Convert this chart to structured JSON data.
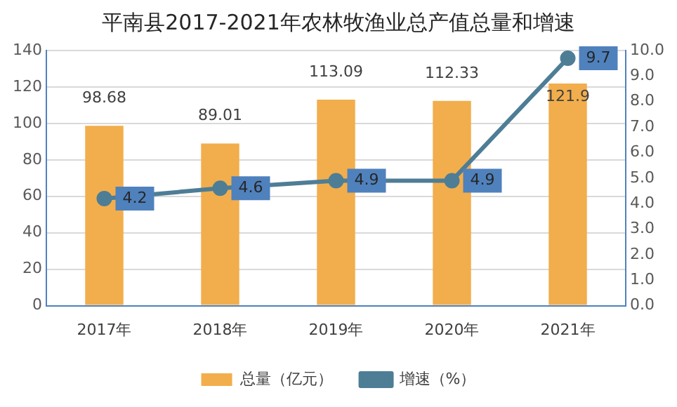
{
  "chart_data": {
    "type": "bar",
    "title": "平南县2017-2021年农林牧渔业总产值总量和增速",
    "categories": [
      "2017年",
      "2018年",
      "2019年",
      "2020年",
      "2021年"
    ],
    "series": [
      {
        "name": "总量（亿元）",
        "color": "#f2ae4c",
        "values": [
          98.68,
          89.01,
          113.09,
          112.33,
          121.9
        ]
      },
      {
        "name": "增速（%）",
        "type": "line",
        "axis": "y2",
        "color": "#4e7d96",
        "values": [
          4.2,
          4.6,
          4.9,
          4.9,
          9.7
        ]
      }
    ],
    "ylim": [
      0,
      140
    ],
    "yticks": [
      0,
      20,
      40,
      60,
      80,
      100,
      120,
      140
    ],
    "y2lim": [
      0,
      10
    ],
    "y2ticks": [
      {
        "value": 0,
        "label": "0.0"
      },
      {
        "value": 1,
        "label": "1.0"
      },
      {
        "value": 2,
        "label": "2.0"
      },
      {
        "value": 3,
        "label": "3.0"
      },
      {
        "value": 4,
        "label": "4.0"
      },
      {
        "value": 5,
        "label": "5.0"
      },
      {
        "value": 6,
        "label": "6.0"
      },
      {
        "value": 7,
        "label": "7.0"
      },
      {
        "value": 8,
        "label": "8.0"
      },
      {
        "value": 9,
        "label": "9.0"
      },
      {
        "value": 10,
        "label": "10.0"
      }
    ],
    "grid": "y",
    "legend": "bottom",
    "marker": "circle",
    "data_labels": true
  }
}
